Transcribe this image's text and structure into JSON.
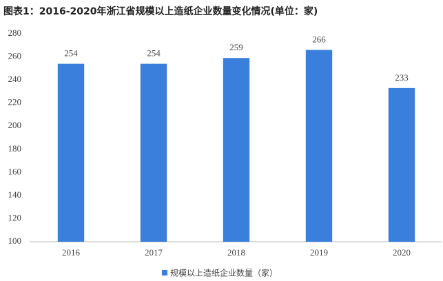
{
  "chart_data": {
    "type": "bar",
    "title": "图表1：2016-2020年浙江省规模以上造纸企业数量变化情况(单位：家)",
    "categories": [
      "2016",
      "2017",
      "2018",
      "2019",
      "2020"
    ],
    "series": [
      {
        "name": "规模以上造纸企业数量（家）",
        "color": "#3a7fdc",
        "values": [
          254,
          254,
          259,
          266,
          233
        ]
      }
    ],
    "ylim": [
      100,
      280
    ],
    "yticks": [
      100,
      120,
      140,
      160,
      180,
      200,
      220,
      240,
      260,
      280
    ],
    "grid": false,
    "legend": "bottom"
  }
}
